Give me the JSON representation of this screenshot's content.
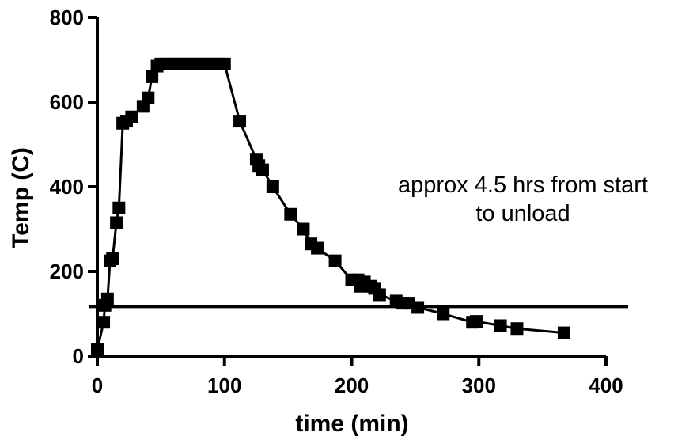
{
  "chart_data": {
    "type": "scatter",
    "xlabel": "time (min)",
    "ylabel": "Temp (C)",
    "xlim": [
      0,
      400
    ],
    "ylim": [
      0,
      800
    ],
    "xticks": [
      0,
      100,
      200,
      300,
      400
    ],
    "yticks": [
      0,
      200,
      400,
      600,
      800
    ],
    "grid": false,
    "annotation": [
      "approx 4.5 hrs from start",
      "to unload"
    ],
    "reference_line": {
      "y": 117
    },
    "series": [
      {
        "x": [
          0,
          5,
          6,
          8,
          10,
          12,
          15,
          17,
          20,
          23,
          27,
          36,
          40,
          43,
          47,
          50,
          55,
          60,
          65,
          70,
          75,
          80,
          85,
          90,
          95,
          100,
          112,
          125,
          127,
          130,
          138,
          152,
          162,
          168,
          173,
          187,
          200,
          205,
          207,
          210,
          215,
          218,
          222,
          235,
          240,
          245,
          252,
          272,
          295,
          298,
          317,
          330,
          367
        ],
        "y": [
          15,
          80,
          120,
          135,
          225,
          230,
          315,
          350,
          550,
          555,
          565,
          590,
          610,
          660,
          685,
          690,
          690,
          690,
          690,
          690,
          690,
          690,
          690,
          690,
          690,
          690,
          555,
          465,
          450,
          440,
          400,
          335,
          300,
          265,
          255,
          225,
          180,
          180,
          165,
          175,
          165,
          160,
          145,
          130,
          125,
          125,
          115,
          100,
          80,
          82,
          72,
          65,
          55
        ]
      }
    ]
  }
}
